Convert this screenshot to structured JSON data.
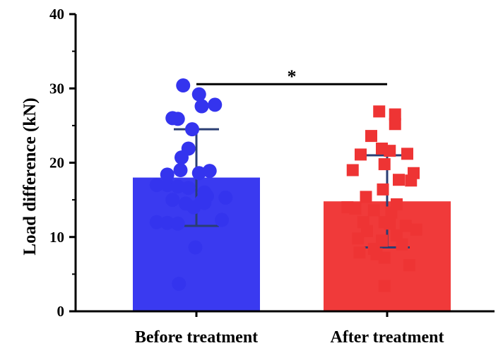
{
  "chart_data": {
    "type": "bar",
    "title": "",
    "xlabel": "",
    "ylabel": "Load difference (kN)",
    "ylim": [
      0,
      40
    ],
    "yticks": [
      "0",
      "10",
      "20",
      "30",
      "40"
    ],
    "grid": false,
    "categories": [
      "Before treatment",
      "After treatment"
    ],
    "values": [
      18.0,
      14.8
    ],
    "error": [
      6.5,
      6.2
    ],
    "colors": [
      "#3a3af0",
      "#f03a3a"
    ],
    "marker_colors": [
      "#3434ee",
      "#ee3434"
    ],
    "markers": [
      "circle",
      "square"
    ],
    "significance": {
      "label": "*",
      "between": [
        0,
        1
      ],
      "y": 32.0
    },
    "points": [
      [
        30.4,
        29.2,
        27.8,
        27.6,
        26.0,
        25.9,
        24.5,
        21.9,
        20.7,
        19.0,
        18.9,
        18.6,
        18.4,
        17.0,
        17.0,
        16.8,
        16.6,
        16.0,
        15.5,
        15.3,
        15.0,
        14.8,
        14.6,
        14.5,
        14.0,
        12.3,
        12.0,
        11.9,
        11.8,
        8.6,
        3.7
      ],
      [
        26.9,
        26.5,
        25.2,
        23.6,
        21.9,
        21.6,
        21.2,
        21.1,
        19.8,
        19.0,
        18.6,
        17.7,
        17.6,
        16.4,
        15.4,
        14.4,
        14.0,
        13.8,
        13.6,
        13.3,
        12.0,
        12.0,
        11.8,
        11.5,
        11.0,
        10.8,
        10.2,
        9.8,
        9.5,
        9.0,
        8.4,
        7.9,
        7.7,
        7.2,
        6.2,
        3.4
      ]
    ],
    "point_offsets": [
      [
        -0.25,
        0.05,
        0.35,
        0.1,
        -0.45,
        -0.35,
        -0.08,
        -0.15,
        -0.28,
        -0.3,
        0.25,
        0.05,
        -0.55,
        -0.75,
        -0.55,
        -0.35,
        -0.15,
        0.15,
        0.2,
        0.55,
        -0.45,
        0.1,
        0.15,
        -0.2,
        -0.05,
        0.48,
        -0.75,
        -0.55,
        -0.35,
        -0.02,
        -0.33
      ],
      [
        -0.15,
        0.15,
        0.15,
        -0.3,
        -0.1,
        0.05,
        0.38,
        -0.5,
        -0.05,
        -0.65,
        0.5,
        0.22,
        0.45,
        -0.08,
        -0.4,
        0.18,
        -0.75,
        -0.6,
        -0.25,
        0.08,
        -0.45,
        -0.05,
        0.05,
        0.35,
        0.55,
        -0.38,
        0.18,
        -0.55,
        -0.1,
        0.28,
        -0.25,
        -0.52,
        -0.2,
        -0.05,
        0.42,
        -0.05
      ]
    ]
  }
}
